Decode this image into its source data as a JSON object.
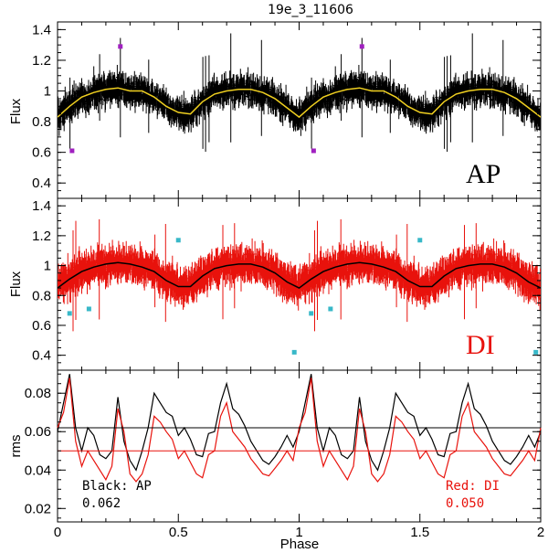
{
  "chart_data": {
    "type": "scatter",
    "title": "19e_3_11606",
    "xlabel": "Phase",
    "xlim": [
      0,
      2
    ],
    "xticks": [
      0,
      0.5,
      1,
      1.5,
      2
    ],
    "xtick_labels": [
      "0",
      "0.5",
      "1",
      "1.5",
      "2"
    ],
    "colors": {
      "ap": "#000000",
      "di": "#e8120c",
      "model_ap": "#f0d020",
      "outlier_ap": "#a020c0",
      "outlier_di": "#38b8c8"
    },
    "panels": [
      {
        "name": "ap",
        "ylabel": "Flux",
        "ylim": [
          0.3,
          1.45
        ],
        "yticks": [
          0.4,
          0.6,
          0.8,
          1,
          1.2,
          1.4
        ],
        "ytick_labels": [
          "0.4",
          "0.6",
          "0.8",
          "1",
          "1.2",
          "1.4"
        ],
        "label": "AP",
        "model_phase": [
          0,
          0.05,
          0.1,
          0.15,
          0.2,
          0.25,
          0.3,
          0.35,
          0.4,
          0.45,
          0.5,
          0.55,
          0.6,
          0.65,
          0.7,
          0.75,
          0.8,
          0.85,
          0.9,
          0.95,
          1
        ],
        "model_flux": [
          0.83,
          0.9,
          0.96,
          0.99,
          1.01,
          1.02,
          1.0,
          1.0,
          0.96,
          0.9,
          0.86,
          0.85,
          0.93,
          0.98,
          1.0,
          1.01,
          1.01,
          0.99,
          0.95,
          0.89,
          0.83
        ],
        "outliers": {
          "phase": [
            0.06,
            0.26,
            1.06,
            1.26
          ],
          "flux": [
            0.61,
            1.29,
            0.61,
            1.29
          ]
        }
      },
      {
        "name": "di",
        "ylabel": "Flux",
        "ylim": [
          0.3,
          1.45
        ],
        "yticks": [
          0.4,
          0.6,
          0.8,
          1,
          1.2,
          1.4
        ],
        "ytick_labels": [
          "0.4",
          "0.6",
          "0.8",
          "1",
          "1.2",
          "1.4"
        ],
        "label": "DI",
        "model_phase": [
          0,
          0.05,
          0.1,
          0.15,
          0.2,
          0.25,
          0.3,
          0.35,
          0.4,
          0.45,
          0.5,
          0.55,
          0.6,
          0.65,
          0.7,
          0.75,
          0.8,
          0.85,
          0.9,
          0.95,
          1
        ],
        "model_flux": [
          0.85,
          0.91,
          0.96,
          0.99,
          1.01,
          1.02,
          1.01,
          0.99,
          0.96,
          0.9,
          0.86,
          0.86,
          0.93,
          0.98,
          1.0,
          1.01,
          1.01,
          0.99,
          0.95,
          0.89,
          0.85
        ],
        "outliers": {
          "phase": [
            0.05,
            0.13,
            0.5,
            0.98,
            1.05,
            1.13,
            1.5,
            1.98
          ],
          "flux": [
            0.68,
            0.71,
            1.17,
            0.42,
            0.68,
            0.71,
            1.17,
            0.42
          ]
        }
      },
      {
        "name": "rms",
        "ylabel": "rms",
        "ylim": [
          0.013,
          0.092
        ],
        "yticks": [
          0.02,
          0.04,
          0.06,
          0.08
        ],
        "ytick_labels": [
          "0.02",
          "0.04",
          "0.06",
          "0.08"
        ],
        "rms_phase": [
          0,
          0.025,
          0.05,
          0.075,
          0.1,
          0.125,
          0.15,
          0.175,
          0.2,
          0.225,
          0.25,
          0.275,
          0.3,
          0.325,
          0.35,
          0.375,
          0.4,
          0.425,
          0.45,
          0.475,
          0.5,
          0.525,
          0.55,
          0.575,
          0.6,
          0.625,
          0.65,
          0.675,
          0.7,
          0.725,
          0.75,
          0.775,
          0.8,
          0.825,
          0.85,
          0.875,
          0.9,
          0.925,
          0.95,
          0.975,
          1
        ],
        "rms_ap": [
          0.06,
          0.075,
          0.09,
          0.062,
          0.05,
          0.062,
          0.058,
          0.048,
          0.046,
          0.05,
          0.078,
          0.055,
          0.045,
          0.04,
          0.05,
          0.062,
          0.08,
          0.075,
          0.07,
          0.068,
          0.058,
          0.062,
          0.056,
          0.048,
          0.047,
          0.059,
          0.06,
          0.075,
          0.085,
          0.072,
          0.069,
          0.063,
          0.055,
          0.05,
          0.045,
          0.043,
          0.047,
          0.052,
          0.058,
          0.052,
          0.06
        ],
        "rms_di": [
          0.062,
          0.07,
          0.088,
          0.055,
          0.042,
          0.05,
          0.045,
          0.04,
          0.035,
          0.042,
          0.072,
          0.06,
          0.038,
          0.034,
          0.038,
          0.048,
          0.068,
          0.065,
          0.06,
          0.056,
          0.046,
          0.05,
          0.044,
          0.038,
          0.036,
          0.048,
          0.05,
          0.068,
          0.075,
          0.06,
          0.056,
          0.052,
          0.046,
          0.042,
          0.038,
          0.037,
          0.041,
          0.045,
          0.05,
          0.045,
          0.062
        ],
        "ref_lines": [
          {
            "series": "AP",
            "value": 0.062
          },
          {
            "series": "DI",
            "value": 0.05
          }
        ],
        "legend": [
          {
            "series": "AP",
            "text": "Black: AP",
            "value_text": "0.062",
            "position": "bottom-left"
          },
          {
            "series": "DI",
            "text": "Red: DI",
            "value_text": "0.050",
            "position": "bottom-right"
          }
        ]
      }
    ]
  }
}
